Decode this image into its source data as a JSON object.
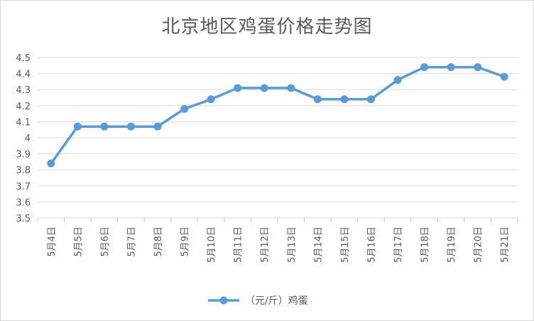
{
  "chart_data": {
    "type": "line",
    "title": "北京地区鸡蛋价格走势图",
    "xlabel": "",
    "ylabel": "",
    "categories": [
      "5月4日",
      "5月5日",
      "5月6日",
      "5月7日",
      "5月8日",
      "5月9日",
      "5月10日",
      "5月11日",
      "5月12日",
      "5月13日",
      "5月14日",
      "5月15日",
      "5月16日",
      "5月17日",
      "5月18日",
      "5月19日",
      "5月20日",
      "5月21日"
    ],
    "series": [
      {
        "name": "（元/斤）鸡蛋",
        "values": [
          3.84,
          4.07,
          4.07,
          4.07,
          4.07,
          4.18,
          4.24,
          4.31,
          4.31,
          4.31,
          4.24,
          4.24,
          4.24,
          4.36,
          4.44,
          4.44,
          4.44,
          4.38
        ],
        "color": "#5b9bd5"
      }
    ],
    "ylim": [
      3.5,
      4.5
    ],
    "yticks": [
      "3.5",
      "3.6",
      "3.7",
      "3.8",
      "3.9",
      "4",
      "4.1",
      "4.2",
      "4.3",
      "4.4",
      "4.5"
    ],
    "grid": true,
    "legend_position": "bottom"
  }
}
